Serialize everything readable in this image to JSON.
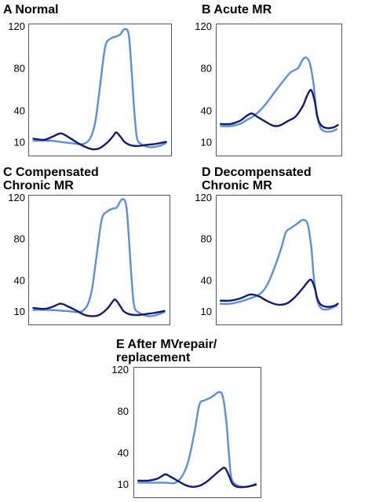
{
  "colors": {
    "lv": "#5b8ee0",
    "la": "#141a6e",
    "frame": "#555555"
  },
  "chart_data": [
    {
      "type": "line",
      "letter": "A",
      "title": "Normal",
      "yticks": [
        120,
        80,
        40,
        10
      ],
      "ylim": [
        0,
        120
      ],
      "xlim": [
        0,
        100
      ],
      "series": [
        {
          "key": "lv",
          "points": [
            [
              2,
              11
            ],
            [
              15,
              11
            ],
            [
              28,
              9
            ],
            [
              40,
              9
            ],
            [
              46,
              24
            ],
            [
              50,
              60
            ],
            [
              54,
              100
            ],
            [
              58,
              108
            ],
            [
              62,
              110
            ],
            [
              65,
              112
            ],
            [
              68,
              117
            ],
            [
              71,
              112
            ],
            [
              73,
              80
            ],
            [
              75,
              40
            ],
            [
              77,
              14
            ],
            [
              80,
              8
            ],
            [
              86,
              5
            ],
            [
              93,
              6
            ],
            [
              98,
              9
            ]
          ]
        },
        {
          "key": "la",
          "points": [
            [
              2,
              13
            ],
            [
              10,
              12
            ],
            [
              16,
              15
            ],
            [
              22,
              18
            ],
            [
              28,
              14
            ],
            [
              34,
              9
            ],
            [
              40,
              5
            ],
            [
              45,
              3
            ],
            [
              50,
              4
            ],
            [
              56,
              10
            ],
            [
              60,
              16
            ],
            [
              62,
              19
            ],
            [
              65,
              15
            ],
            [
              68,
              10
            ],
            [
              72,
              7
            ],
            [
              77,
              6
            ],
            [
              83,
              7
            ],
            [
              90,
              8
            ],
            [
              98,
              10
            ]
          ]
        }
      ]
    },
    {
      "type": "line",
      "letter": "B",
      "title": "Acute MR",
      "yticks": [
        120,
        80,
        40,
        10
      ],
      "ylim": [
        0,
        120
      ],
      "xlim": [
        0,
        100
      ],
      "series": [
        {
          "key": "lv",
          "points": [
            [
              2,
              25
            ],
            [
              10,
              25
            ],
            [
              18,
              27
            ],
            [
              24,
              31
            ],
            [
              30,
              35
            ],
            [
              38,
              44
            ],
            [
              46,
              56
            ],
            [
              54,
              68
            ],
            [
              60,
              76
            ],
            [
              66,
              80
            ],
            [
              70,
              88
            ],
            [
              73,
              90
            ],
            [
              76,
              84
            ],
            [
              79,
              64
            ],
            [
              81,
              42
            ],
            [
              84,
              25
            ],
            [
              88,
              20
            ],
            [
              94,
              20
            ],
            [
              98,
              22
            ]
          ]
        },
        {
          "key": "la",
          "points": [
            [
              2,
              27
            ],
            [
              10,
              27
            ],
            [
              18,
              30
            ],
            [
              24,
              35
            ],
            [
              28,
              37
            ],
            [
              32,
              34
            ],
            [
              38,
              30
            ],
            [
              44,
              26
            ],
            [
              48,
              25
            ],
            [
              52,
              26
            ],
            [
              58,
              30
            ],
            [
              64,
              34
            ],
            [
              70,
              44
            ],
            [
              74,
              55
            ],
            [
              77,
              59
            ],
            [
              80,
              48
            ],
            [
              82,
              34
            ],
            [
              85,
              26
            ],
            [
              90,
              23
            ],
            [
              96,
              24
            ],
            [
              99,
              26
            ]
          ]
        }
      ]
    },
    {
      "type": "line",
      "letter": "C",
      "title": "Compensated\nChronic MR",
      "yticks": [
        120,
        80,
        40,
        10
      ],
      "ylim": [
        0,
        120
      ],
      "xlim": [
        0,
        100
      ],
      "series": [
        {
          "key": "lv",
          "points": [
            [
              2,
              11
            ],
            [
              14,
              11
            ],
            [
              26,
              10
            ],
            [
              38,
              10
            ],
            [
              44,
              25
            ],
            [
              48,
              60
            ],
            [
              52,
              98
            ],
            [
              56,
              106
            ],
            [
              60,
              109
            ],
            [
              63,
              110
            ],
            [
              67,
              118
            ],
            [
              70,
              112
            ],
            [
              72,
              80
            ],
            [
              74,
              40
            ],
            [
              76,
              14
            ],
            [
              80,
              8
            ],
            [
              86,
              5
            ],
            [
              92,
              6
            ],
            [
              98,
              9
            ]
          ]
        },
        {
          "key": "la",
          "points": [
            [
              2,
              13
            ],
            [
              10,
              12
            ],
            [
              16,
              14
            ],
            [
              22,
              17
            ],
            [
              28,
              14
            ],
            [
              34,
              10
            ],
            [
              40,
              6
            ],
            [
              45,
              5
            ],
            [
              50,
              6
            ],
            [
              56,
              12
            ],
            [
              60,
              19
            ],
            [
              62,
              21
            ],
            [
              65,
              16
            ],
            [
              68,
              10
            ],
            [
              72,
              7
            ],
            [
              78,
              6
            ],
            [
              84,
              7
            ],
            [
              90,
              8
            ],
            [
              98,
              10
            ]
          ]
        }
      ]
    },
    {
      "type": "line",
      "letter": "D",
      "title": "Decompensated\nChronic MR",
      "yticks": [
        120,
        80,
        40,
        10
      ],
      "ylim": [
        0,
        120
      ],
      "xlim": [
        0,
        100
      ],
      "series": [
        {
          "key": "lv",
          "points": [
            [
              2,
              17
            ],
            [
              10,
              17
            ],
            [
              18,
              19
            ],
            [
              26,
              22
            ],
            [
              34,
              26
            ],
            [
              40,
              34
            ],
            [
              46,
              50
            ],
            [
              52,
              70
            ],
            [
              56,
              86
            ],
            [
              60,
              90
            ],
            [
              65,
              94
            ],
            [
              70,
              98
            ],
            [
              74,
              94
            ],
            [
              77,
              72
            ],
            [
              79,
              44
            ],
            [
              82,
              20
            ],
            [
              86,
              12
            ],
            [
              92,
              12
            ],
            [
              98,
              15
            ]
          ]
        },
        {
          "key": "la",
          "points": [
            [
              2,
              20
            ],
            [
              10,
              20
            ],
            [
              18,
              22
            ],
            [
              24,
              25
            ],
            [
              28,
              26
            ],
            [
              34,
              24
            ],
            [
              40,
              20
            ],
            [
              46,
              17
            ],
            [
              52,
              16
            ],
            [
              58,
              18
            ],
            [
              64,
              24
            ],
            [
              70,
              32
            ],
            [
              74,
              38
            ],
            [
              77,
              40
            ],
            [
              80,
              32
            ],
            [
              82,
              22
            ],
            [
              85,
              16
            ],
            [
              90,
              14
            ],
            [
              96,
              15
            ],
            [
              99,
              17
            ]
          ]
        }
      ]
    },
    {
      "type": "line",
      "letter": "E",
      "title": "After MVrepair/\nreplacement",
      "yticks": [
        120,
        80,
        40,
        10
      ],
      "ylim": [
        0,
        120
      ],
      "xlim": [
        0,
        100
      ],
      "series": [
        {
          "key": "lv",
          "points": [
            [
              2,
              11
            ],
            [
              14,
              11
            ],
            [
              24,
              11
            ],
            [
              34,
              12
            ],
            [
              42,
              28
            ],
            [
              48,
              60
            ],
            [
              52,
              86
            ],
            [
              56,
              90
            ],
            [
              60,
              92
            ],
            [
              64,
              95
            ],
            [
              68,
              98
            ],
            [
              71,
              94
            ],
            [
              74,
              70
            ],
            [
              76,
              40
            ],
            [
              78,
              16
            ],
            [
              82,
              9
            ],
            [
              88,
              7
            ],
            [
              94,
              8
            ],
            [
              98,
              10
            ]
          ]
        },
        {
          "key": "la",
          "points": [
            [
              2,
              13
            ],
            [
              10,
              13
            ],
            [
              18,
              15
            ],
            [
              24,
              19
            ],
            [
              28,
              17
            ],
            [
              34,
              13
            ],
            [
              40,
              9
            ],
            [
              46,
              7
            ],
            [
              52,
              8
            ],
            [
              58,
              12
            ],
            [
              64,
              18
            ],
            [
              70,
              24
            ],
            [
              73,
              25
            ],
            [
              76,
              18
            ],
            [
              79,
              10
            ],
            [
              83,
              7
            ],
            [
              90,
              7
            ],
            [
              98,
              9
            ]
          ]
        }
      ]
    }
  ]
}
